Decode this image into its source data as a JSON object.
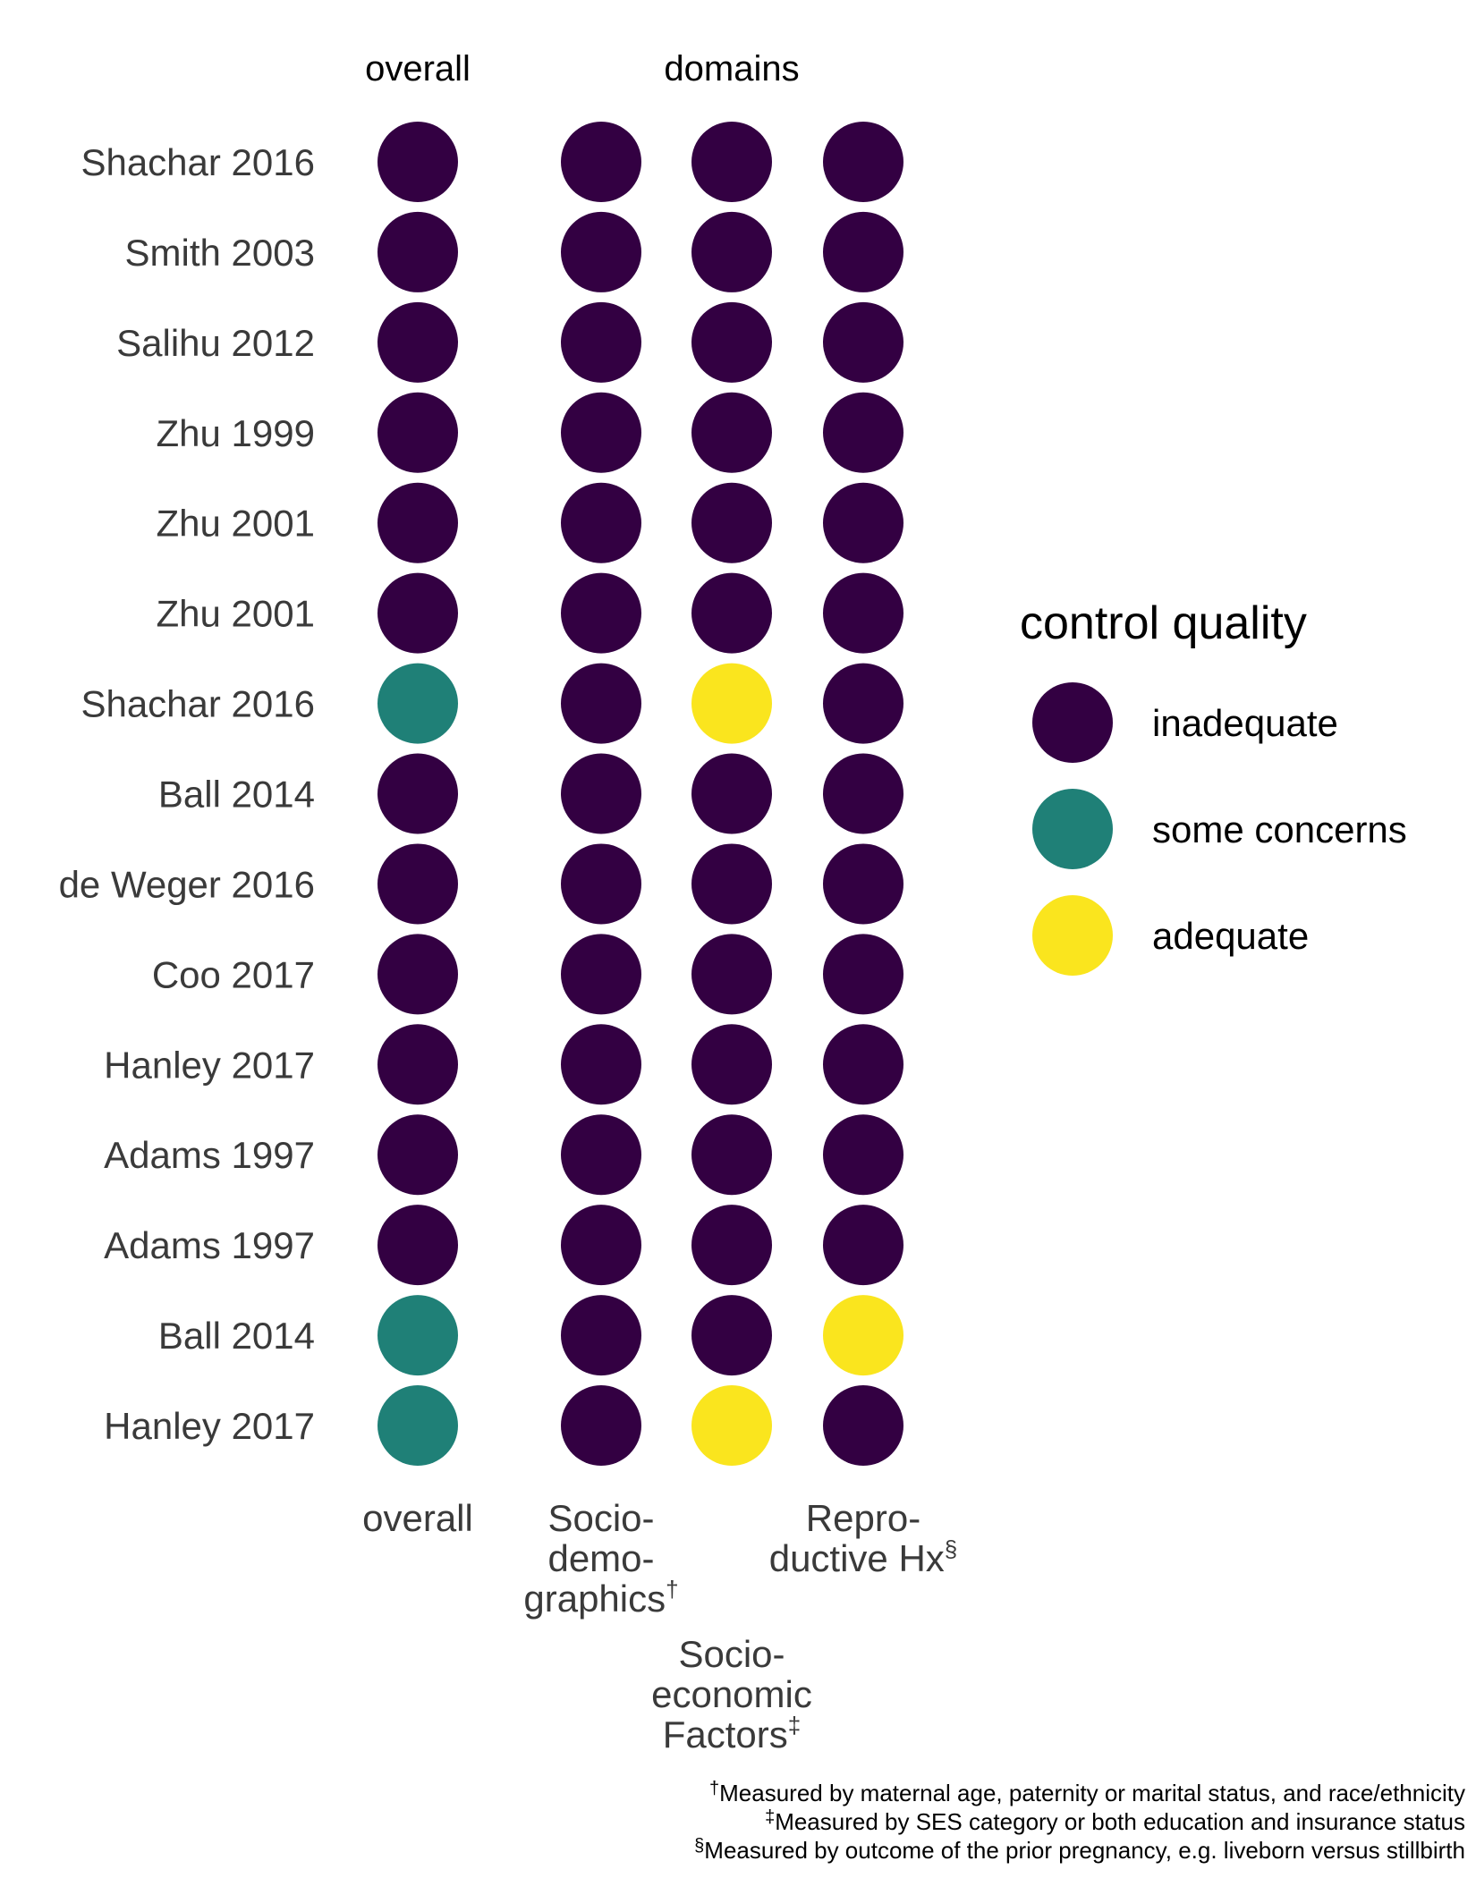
{
  "chart_data": {
    "type": "dot-matrix",
    "facets": [
      {
        "title": "overall",
        "columns": [
          "overall"
        ]
      },
      {
        "title": "domains",
        "columns": [
          "Socio-demographics",
          "Socio-economic Factors",
          "Reproductive Hx"
        ]
      }
    ],
    "rows": [
      "Shachar 2016",
      "Smith 2003",
      "Salihu 2012",
      "Zhu 1999",
      "Zhu 2001",
      "Zhu 2001",
      "Shachar 2016",
      "Ball 2014",
      "de Weger 2016",
      "Coo 2017",
      "Hanley 2017",
      "Adams 1997",
      "Adams 1997",
      "Ball 2014",
      "Hanley 2017"
    ],
    "column_labels": [
      {
        "lines": [
          "overall"
        ],
        "marker": ""
      },
      {
        "lines": [
          "Socio-",
          "demo-",
          "graphics"
        ],
        "marker": "†"
      },
      {
        "lines": [
          "Socio-",
          "economic",
          "Factors"
        ],
        "marker": "‡"
      },
      {
        "lines": [
          "Repro-",
          "ductive Hx"
        ],
        "marker": "§"
      }
    ],
    "values": [
      [
        "inadequate",
        "inadequate",
        "inadequate",
        "inadequate"
      ],
      [
        "inadequate",
        "inadequate",
        "inadequate",
        "inadequate"
      ],
      [
        "inadequate",
        "inadequate",
        "inadequate",
        "inadequate"
      ],
      [
        "inadequate",
        "inadequate",
        "inadequate",
        "inadequate"
      ],
      [
        "inadequate",
        "inadequate",
        "inadequate",
        "inadequate"
      ],
      [
        "inadequate",
        "inadequate",
        "inadequate",
        "inadequate"
      ],
      [
        "some concerns",
        "inadequate",
        "adequate",
        "inadequate"
      ],
      [
        "inadequate",
        "inadequate",
        "inadequate",
        "inadequate"
      ],
      [
        "inadequate",
        "inadequate",
        "inadequate",
        "inadequate"
      ],
      [
        "inadequate",
        "inadequate",
        "inadequate",
        "inadequate"
      ],
      [
        "inadequate",
        "inadequate",
        "inadequate",
        "inadequate"
      ],
      [
        "inadequate",
        "inadequate",
        "inadequate",
        "inadequate"
      ],
      [
        "inadequate",
        "inadequate",
        "inadequate",
        "inadequate"
      ],
      [
        "some concerns",
        "inadequate",
        "inadequate",
        "adequate"
      ],
      [
        "some concerns",
        "inadequate",
        "adequate",
        "inadequate"
      ]
    ],
    "legend": {
      "title": "control quality",
      "position": "right",
      "items": [
        {
          "label": "inadequate",
          "color": "#330042"
        },
        {
          "label": "some concerns",
          "color": "#1f8077"
        },
        {
          "label": "adequate",
          "color": "#fae51e"
        }
      ]
    },
    "footnotes": [
      {
        "marker": "†",
        "text": "Measured by maternal age, paternity or marital status, and race/ethnicity"
      },
      {
        "marker": "‡",
        "text": "Measured by SES category or both education and insurance status"
      },
      {
        "marker": "§",
        "text": "Measured by outcome of the prior pregnancy, e.g. liveborn versus stillbirth"
      }
    ]
  }
}
